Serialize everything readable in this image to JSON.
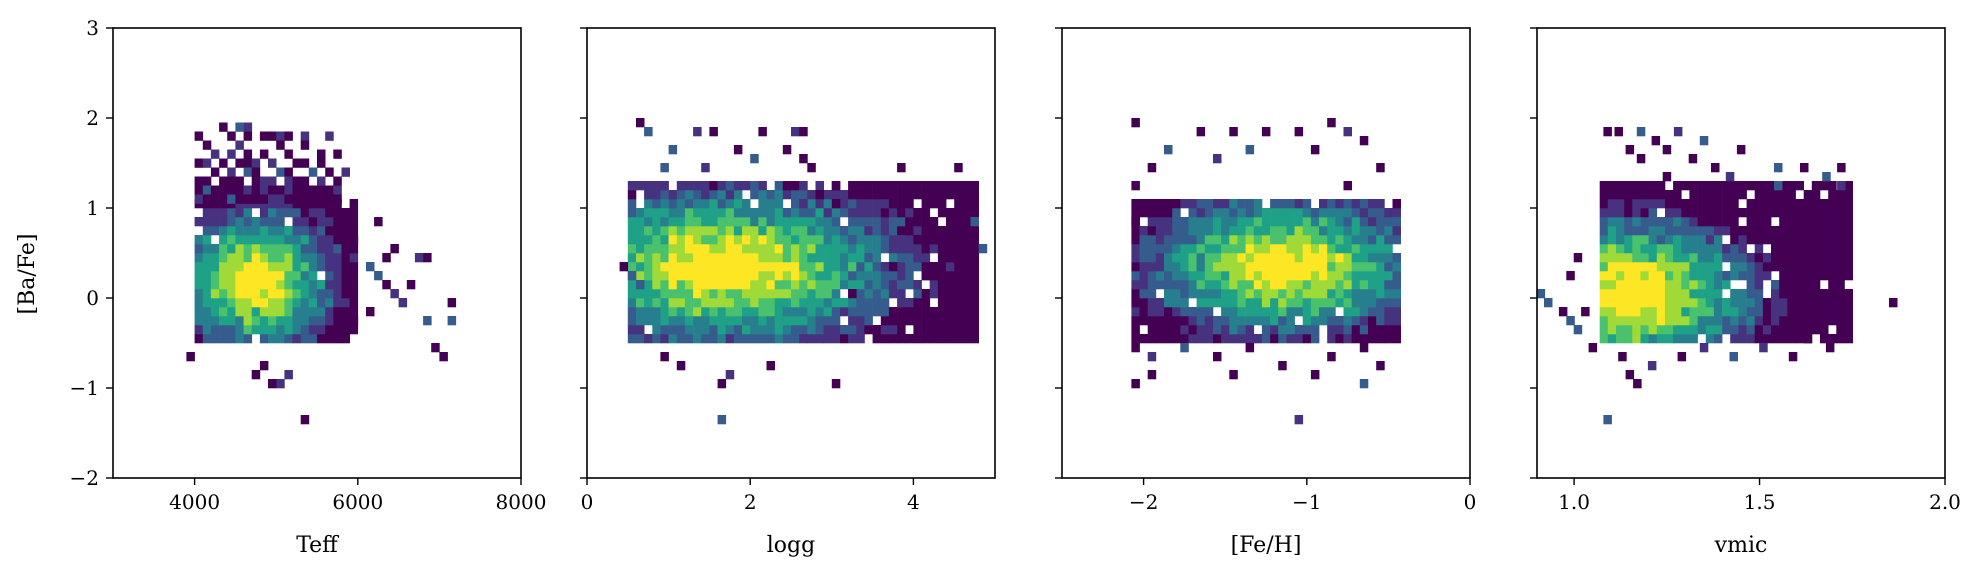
{
  "chart_data": [
    {
      "type": "heatmap",
      "xlabel": "Teff",
      "ylabel": "[Ba/Fe]",
      "xlim": [
        3000,
        8000
      ],
      "ylim": [
        -2,
        3
      ],
      "xticks": [
        4000,
        6000,
        8000
      ],
      "xtick_labels": [
        "4000",
        "6000",
        "8000"
      ],
      "yticks": [
        -2,
        -1,
        0,
        1,
        2,
        3
      ],
      "ytick_labels": [
        "−2",
        "−1",
        "0",
        "1",
        "2",
        "3"
      ],
      "colormap": "viridis",
      "bins": {
        "x_start": 4000,
        "x_step": 100,
        "y_start": -1.4,
        "y_step": 0.1
      },
      "rows": [
        {
          "y": 1.9,
          "x": [
            4350,
            4550,
            4650
          ]
        },
        {
          "y": 1.8,
          "x": [
            4050,
            4450,
            4650,
            4850,
            4950,
            5050,
            5150,
            5350,
            5650
          ]
        },
        {
          "y": 1.7,
          "x": [
            4150,
            4550,
            5050,
            5350
          ]
        },
        {
          "y": 1.6,
          "x": [
            4250,
            4450,
            4650,
            4850,
            5150,
            5550,
            5750
          ]
        },
        {
          "y": 1.5,
          "x": [
            4050,
            4150,
            4350,
            4550,
            4650,
            4750,
            4950,
            5250,
            5350,
            5550
          ]
        },
        {
          "y": 1.4,
          "x": [
            4250,
            4450,
            4650,
            4750,
            5050,
            5150,
            5450,
            5650,
            5850
          ]
        },
        {
          "y": 1.3,
          "x": [
            4050,
            4150,
            4350,
            4450,
            4550,
            4750,
            4850,
            4950,
            5150,
            5250,
            5350,
            5550,
            5750
          ]
        },
        {
          "y": 1.2,
          "x": [
            4050,
            4150,
            4250,
            4350,
            4450,
            4550,
            4650,
            4750,
            4850,
            4950,
            5050,
            5150,
            5250,
            5350,
            5450,
            5550,
            5650,
            5750
          ]
        },
        {
          "y": 1.1,
          "x": [
            4050,
            4150,
            4250,
            4350,
            4450,
            4550,
            4650,
            4750,
            4850,
            4950,
            5050,
            5150,
            5250,
            5350,
            5450,
            5550,
            5650,
            5750
          ]
        }
      ],
      "density_blob": {
        "x_range": [
          4050,
          5950
        ],
        "y_range": [
          -0.45,
          1.05
        ],
        "peak_x": 4750,
        "peak_y": 0.2
      },
      "sparse_points": [
        [
          5950,
          0.65
        ],
        [
          6250,
          0.85
        ],
        [
          6350,
          0.45
        ],
        [
          6450,
          0.55
        ],
        [
          6150,
          0.35
        ],
        [
          6250,
          0.25
        ],
        [
          6350,
          0.15
        ],
        [
          6450,
          0.05
        ],
        [
          6650,
          0.15
        ],
        [
          6750,
          0.45
        ],
        [
          6850,
          0.45
        ],
        [
          6550,
          -0.05
        ],
        [
          7150,
          -0.05
        ],
        [
          6850,
          -0.25
        ],
        [
          7150,
          -0.25
        ],
        [
          6950,
          -0.55
        ],
        [
          7050,
          -0.65
        ],
        [
          4750,
          -0.85
        ],
        [
          5150,
          -0.85
        ],
        [
          5050,
          -0.95
        ],
        [
          4950,
          -0.95
        ],
        [
          5350,
          -1.35
        ],
        [
          3950,
          -0.65
        ],
        [
          4850,
          -0.75
        ],
        [
          5950,
          -0.25
        ],
        [
          6150,
          -0.15
        ]
      ]
    },
    {
      "type": "heatmap",
      "xlabel": "logg",
      "ylabel": "",
      "xlim": [
        0,
        5
      ],
      "ylim": [
        -2,
        3
      ],
      "xticks": [
        0,
        2,
        4
      ],
      "xtick_labels": [
        "0",
        "2",
        "4"
      ],
      "colormap": "viridis",
      "density_blob": {
        "x_range": [
          0.55,
          4.75
        ],
        "y_range": [
          -0.45,
          1.25
        ],
        "peak_x": 1.7,
        "peak_y": 0.35
      },
      "sparse_points": [
        [
          0.65,
          1.95
        ],
        [
          0.75,
          1.85
        ],
        [
          1.35,
          1.85
        ],
        [
          1.55,
          1.85
        ],
        [
          2.15,
          1.85
        ],
        [
          2.55,
          1.85
        ],
        [
          2.65,
          1.85
        ],
        [
          1.05,
          1.65
        ],
        [
          1.85,
          1.65
        ],
        [
          2.45,
          1.65
        ],
        [
          2.65,
          1.55
        ],
        [
          2.75,
          1.45
        ],
        [
          0.95,
          1.45
        ],
        [
          1.45,
          1.45
        ],
        [
          2.05,
          1.55
        ],
        [
          3.85,
          1.45
        ],
        [
          4.55,
          1.45
        ],
        [
          3.05,
          1.25
        ],
        [
          2.85,
          1.15
        ],
        [
          3.05,
          1.05
        ],
        [
          2.65,
          1.05
        ],
        [
          4.75,
          0.85
        ],
        [
          3.25,
          0.65
        ],
        [
          3.85,
          0.65
        ],
        [
          4.05,
          0.65
        ],
        [
          4.55,
          0.55
        ],
        [
          4.85,
          0.55
        ],
        [
          3.45,
          0.45
        ],
        [
          3.75,
          0.35
        ],
        [
          4.15,
          0.25
        ],
        [
          0.45,
          0.35
        ],
        [
          0.55,
          0.25
        ],
        [
          0.65,
          0.15
        ],
        [
          0.95,
          -0.65
        ],
        [
          1.15,
          -0.75
        ],
        [
          1.65,
          -0.95
        ],
        [
          1.75,
          -0.85
        ],
        [
          2.25,
          -0.75
        ],
        [
          3.05,
          -0.95
        ],
        [
          1.65,
          -1.35
        ],
        [
          3.25,
          0.05
        ],
        [
          4.65,
          -0.05
        ]
      ]
    },
    {
      "type": "heatmap",
      "xlabel": "[Fe/H]",
      "ylabel": "",
      "xlim": [
        -2.5,
        0
      ],
      "ylim": [
        -2,
        3
      ],
      "xticks": [
        -2,
        -1,
        0
      ],
      "xtick_labels": [
        "−2",
        "−1",
        "0"
      ],
      "colormap": "viridis",
      "density_blob": {
        "x_range": [
          -2.05,
          -0.45
        ],
        "y_range": [
          -0.45,
          1.05
        ],
        "peak_x": -1.15,
        "peak_y": 0.35
      },
      "sparse_points": [
        [
          -2.05,
          1.95
        ],
        [
          -1.65,
          1.85
        ],
        [
          -1.45,
          1.85
        ],
        [
          -1.25,
          1.85
        ],
        [
          -1.05,
          1.85
        ],
        [
          -0.85,
          1.95
        ],
        [
          -0.75,
          1.85
        ],
        [
          -0.65,
          1.75
        ],
        [
          -1.85,
          1.65
        ],
        [
          -1.55,
          1.55
        ],
        [
          -1.35,
          1.65
        ],
        [
          -0.95,
          1.65
        ],
        [
          -0.55,
          1.45
        ],
        [
          -1.95,
          1.45
        ],
        [
          -0.75,
          1.25
        ],
        [
          -2.05,
          1.25
        ],
        [
          -2.05,
          0.85
        ],
        [
          -0.45,
          0.85
        ],
        [
          -2.05,
          -0.55
        ],
        [
          -1.95,
          -0.65
        ],
        [
          -1.75,
          -0.55
        ],
        [
          -1.55,
          -0.65
        ],
        [
          -1.35,
          -0.55
        ],
        [
          -0.85,
          -0.65
        ],
        [
          -0.65,
          -0.55
        ],
        [
          -0.55,
          -0.75
        ],
        [
          -1.95,
          -0.85
        ],
        [
          -1.45,
          -0.85
        ],
        [
          -1.15,
          -0.75
        ],
        [
          -0.95,
          -0.85
        ],
        [
          -0.65,
          -0.95
        ],
        [
          -2.05,
          -0.95
        ],
        [
          -1.05,
          -1.35
        ]
      ]
    },
    {
      "type": "heatmap",
      "xlabel": "vmic",
      "ylabel": "",
      "xlim": [
        0.9,
        2.0
      ],
      "ylim": [
        -2,
        3
      ],
      "xticks": [
        1.0,
        1.5,
        2.0
      ],
      "xtick_labels": [
        "1.0",
        "1.5",
        "2.0"
      ],
      "colormap": "viridis",
      "density_blob": {
        "x_range": [
          1.08,
          1.75
        ],
        "y_range": [
          -0.45,
          1.25
        ],
        "peak_x": 1.15,
        "peak_y": 0.05
      },
      "sparse_points": [
        [
          1.09,
          1.85
        ],
        [
          1.12,
          1.85
        ],
        [
          1.18,
          1.85
        ],
        [
          1.28,
          1.85
        ],
        [
          1.22,
          1.75
        ],
        [
          1.35,
          1.75
        ],
        [
          1.15,
          1.65
        ],
        [
          1.25,
          1.65
        ],
        [
          1.45,
          1.65
        ],
        [
          1.18,
          1.55
        ],
        [
          1.32,
          1.55
        ],
        [
          1.62,
          1.45
        ],
        [
          1.72,
          1.45
        ],
        [
          1.38,
          1.45
        ],
        [
          1.55,
          1.45
        ],
        [
          1.42,
          1.35
        ],
        [
          1.68,
          1.35
        ],
        [
          1.72,
          1.25
        ],
        [
          1.55,
          1.25
        ],
        [
          1.65,
          1.15
        ],
        [
          1.25,
          1.35
        ],
        [
          0.91,
          0.05
        ],
        [
          0.93,
          -0.05
        ],
        [
          0.99,
          0.25
        ],
        [
          1.01,
          0.45
        ],
        [
          0.97,
          -0.15
        ],
        [
          0.99,
          -0.25
        ],
        [
          1.01,
          -0.35
        ],
        [
          1.03,
          -0.15
        ],
        [
          1.05,
          -0.55
        ],
        [
          1.86,
          -0.05
        ],
        [
          1.09,
          -1.35
        ],
        [
          1.13,
          -0.65
        ],
        [
          1.15,
          -0.85
        ],
        [
          1.17,
          -0.95
        ],
        [
          1.21,
          -0.75
        ],
        [
          1.29,
          -0.65
        ],
        [
          1.35,
          -0.55
        ],
        [
          1.43,
          -0.65
        ],
        [
          1.51,
          -0.55
        ],
        [
          1.59,
          -0.65
        ],
        [
          1.63,
          -0.45
        ],
        [
          1.69,
          -0.55
        ]
      ]
    }
  ]
}
